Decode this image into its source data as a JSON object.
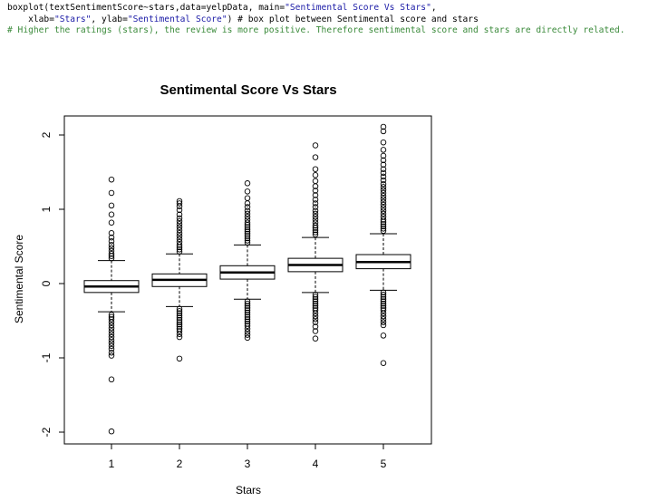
{
  "code": {
    "l1_a": "boxplot(textSentimentScore~stars,data=yelpData, main=",
    "l1_b": "\"Sentimental Score Vs Stars\"",
    "l1_c": ",",
    "l2_a": "    xlab=",
    "l2_b": "\"Stars\"",
    "l2_c": ", ylab=",
    "l2_d": "\"Sentimental Score\"",
    "l2_e": ") # box plot between Sentimental score and stars",
    "l3": "# Higher the ratings (stars), the review is more positive. Therefore sentimental score and stars are directly related."
  },
  "chart_data": {
    "type": "box",
    "title": "Sentimental Score Vs Stars",
    "xlabel": "Stars",
    "ylabel": "Sentimental Score",
    "categories": [
      "1",
      "2",
      "3",
      "4",
      "5"
    ],
    "yticks": [
      -2,
      -1,
      0,
      1,
      2
    ],
    "ylim": [
      -2.1,
      2.25
    ],
    "boxes": [
      {
        "category": "1",
        "whisker_low": -0.38,
        "q1": -0.12,
        "median": -0.04,
        "q3": 0.04,
        "whisker_high": 0.31,
        "outliers": [
          1.4,
          1.22,
          1.05,
          0.93,
          0.82,
          0.68,
          0.62,
          0.57,
          0.52,
          0.48,
          0.44,
          0.4,
          0.37,
          0.34,
          -0.42,
          -0.45,
          -0.48,
          -0.52,
          -0.56,
          -0.6,
          -0.64,
          -0.68,
          -0.72,
          -0.76,
          -0.8,
          -0.84,
          -0.88,
          -0.93,
          -0.97,
          -1.29,
          -1.99
        ]
      },
      {
        "category": "2",
        "whisker_low": -0.31,
        "q1": -0.04,
        "median": 0.05,
        "q3": 0.13,
        "whisker_high": 0.4,
        "outliers": [
          1.11,
          1.08,
          1.04,
          0.99,
          0.93,
          0.88,
          0.84,
          0.8,
          0.76,
          0.72,
          0.68,
          0.64,
          0.6,
          0.56,
          0.52,
          0.49,
          0.46,
          0.43,
          -0.34,
          -0.37,
          -0.4,
          -0.43,
          -0.46,
          -0.49,
          -0.52,
          -0.55,
          -0.58,
          -0.61,
          -0.64,
          -0.68,
          -0.72,
          -1.01
        ]
      },
      {
        "category": "3",
        "whisker_low": -0.21,
        "q1": 0.06,
        "median": 0.15,
        "q3": 0.24,
        "whisker_high": 0.52,
        "outliers": [
          1.35,
          1.24,
          1.15,
          1.08,
          1.03,
          0.98,
          0.94,
          0.9,
          0.86,
          0.82,
          0.79,
          0.76,
          0.73,
          0.7,
          0.67,
          0.64,
          0.61,
          0.58,
          0.55,
          -0.24,
          -0.27,
          -0.3,
          -0.33,
          -0.36,
          -0.39,
          -0.42,
          -0.45,
          -0.48,
          -0.51,
          -0.54,
          -0.57,
          -0.61,
          -0.65,
          -0.69,
          -0.73
        ]
      },
      {
        "category": "4",
        "whisker_low": -0.12,
        "q1": 0.16,
        "median": 0.25,
        "q3": 0.34,
        "whisker_high": 0.62,
        "outliers": [
          1.86,
          1.7,
          1.54,
          1.46,
          1.38,
          1.31,
          1.25,
          1.19,
          1.13,
          1.08,
          1.03,
          0.98,
          0.94,
          0.9,
          0.86,
          0.82,
          0.78,
          0.75,
          0.72,
          0.69,
          0.66,
          -0.15,
          -0.18,
          -0.21,
          -0.24,
          -0.27,
          -0.3,
          -0.33,
          -0.36,
          -0.4,
          -0.44,
          -0.48,
          -0.52,
          -0.58,
          -0.64,
          -0.74
        ]
      },
      {
        "category": "5",
        "whisker_low": -0.09,
        "q1": 0.2,
        "median": 0.29,
        "q3": 0.39,
        "whisker_high": 0.67,
        "outliers": [
          2.11,
          2.05,
          1.9,
          1.8,
          1.72,
          1.66,
          1.6,
          1.54,
          1.49,
          1.44,
          1.39,
          1.34,
          1.3,
          1.26,
          1.22,
          1.18,
          1.14,
          1.1,
          1.06,
          1.02,
          0.98,
          0.94,
          0.9,
          0.86,
          0.83,
          0.8,
          0.77,
          0.74,
          0.71,
          -0.12,
          -0.15,
          -0.18,
          -0.21,
          -0.24,
          -0.27,
          -0.3,
          -0.33,
          -0.36,
          -0.4,
          -0.44,
          -0.48,
          -0.52,
          -0.56,
          -0.7,
          -1.07
        ]
      }
    ]
  }
}
